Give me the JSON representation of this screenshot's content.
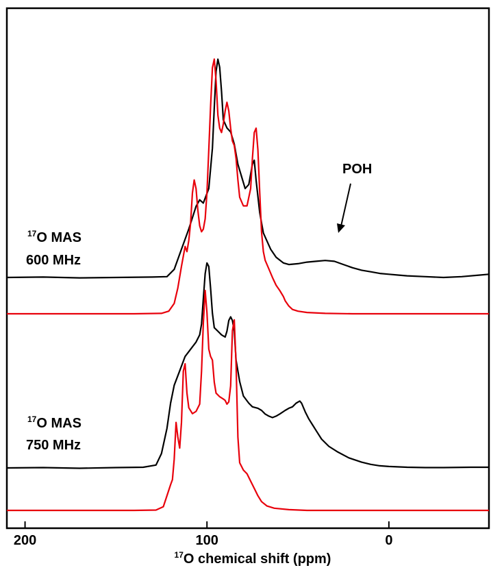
{
  "chart_data": {
    "type": "line",
    "xlabel_sup": "17",
    "xlabel_main": "O chemical shift (ppm)",
    "x_reversed": true,
    "xlim": [
      210,
      -55
    ],
    "x_ticks": [
      200,
      100,
      0
    ],
    "x_tick_labels": [
      "200",
      "100",
      "0"
    ],
    "yaxis": "none (offset stacked spectra)",
    "grid": false,
    "colors": {
      "experimental": "#000000",
      "simulated": "#e8000b"
    },
    "spectra": [
      {
        "label_sup": "17",
        "label_line1": "O MAS",
        "label_line2": "600 MHz",
        "series": [
          {
            "role": "experimental",
            "baseline": 0,
            "points": [
              [
                210,
                0
              ],
              [
                190,
                0.005
              ],
              [
                170,
                -0.005
              ],
              [
                150,
                0
              ],
              [
                130,
                0.005
              ],
              [
                122,
                0.01
              ],
              [
                118,
                0.1
              ],
              [
                114,
                0.35
              ],
              [
                110,
                0.6
              ],
              [
                106,
                0.88
              ],
              [
                104,
                0.96
              ],
              [
                102,
                0.92
              ],
              [
                99,
                1.1
              ],
              [
                97,
                1.6
              ],
              [
                96,
                2.1
              ],
              [
                95,
                2.55
              ],
              [
                94,
                2.7
              ],
              [
                93,
                2.6
              ],
              [
                92,
                2.3
              ],
              [
                91,
                1.95
              ],
              [
                89,
                1.85
              ],
              [
                87,
                1.8
              ],
              [
                85,
                1.65
              ],
              [
                83,
                1.4
              ],
              [
                81,
                1.25
              ],
              [
                79,
                1.1
              ],
              [
                77,
                1.15
              ],
              [
                75,
                1.4
              ],
              [
                74,
                1.45
              ],
              [
                73,
                1.2
              ],
              [
                71,
                0.8
              ],
              [
                69,
                0.55
              ],
              [
                67,
                0.45
              ],
              [
                65,
                0.35
              ],
              [
                62,
                0.25
              ],
              [
                58,
                0.18
              ],
              [
                55,
                0.16
              ],
              [
                50,
                0.17
              ],
              [
                45,
                0.19
              ],
              [
                40,
                0.2
              ],
              [
                35,
                0.21
              ],
              [
                30,
                0.2
              ],
              [
                25,
                0.16
              ],
              [
                20,
                0.12
              ],
              [
                15,
                0.09
              ],
              [
                10,
                0.07
              ],
              [
                5,
                0.05
              ],
              [
                0,
                0.04
              ],
              [
                -5,
                0.03
              ],
              [
                -10,
                0.02
              ],
              [
                -20,
                0.01
              ],
              [
                -30,
                0
              ],
              [
                -40,
                0.01
              ],
              [
                -50,
                0.03
              ],
              [
                -55,
                0.04
              ]
            ]
          },
          {
            "role": "simulated",
            "baseline": 0,
            "points": [
              [
                210,
                0
              ],
              [
                140,
                0
              ],
              [
                125,
                0.005
              ],
              [
                121,
                0.03
              ],
              [
                118,
                0.12
              ],
              [
                116,
                0.3
              ],
              [
                114,
                0.55
              ],
              [
                112,
                0.78
              ],
              [
                111,
                0.72
              ],
              [
                110,
                0.85
              ],
              [
                109,
                1.05
              ],
              [
                108,
                1.4
              ],
              [
                107,
                1.55
              ],
              [
                106,
                1.45
              ],
              [
                105,
                1.2
              ],
              [
                104,
                1.02
              ],
              [
                103,
                0.95
              ],
              [
                102,
                0.98
              ],
              [
                101,
                1.1
              ],
              [
                100,
                1.4
              ],
              [
                99,
                1.9
              ],
              [
                98,
                2.4
              ],
              [
                97,
                2.85
              ],
              [
                96,
                2.95
              ],
              [
                95,
                2.7
              ],
              [
                94,
                2.3
              ],
              [
                93,
                2.15
              ],
              [
                92,
                2.1
              ],
              [
                91,
                2.2
              ],
              [
                90,
                2.35
              ],
              [
                89,
                2.45
              ],
              [
                88,
                2.35
              ],
              [
                87,
                2.15
              ],
              [
                86,
                2.0
              ],
              [
                85,
                1.95
              ],
              [
                84,
                1.8
              ],
              [
                83,
                1.55
              ],
              [
                82,
                1.35
              ],
              [
                80,
                1.25
              ],
              [
                78,
                1.25
              ],
              [
                76,
                1.45
              ],
              [
                75,
                1.8
              ],
              [
                74,
                2.1
              ],
              [
                73,
                2.15
              ],
              [
                72,
                1.9
              ],
              [
                71,
                1.4
              ],
              [
                70,
                0.95
              ],
              [
                69,
                0.72
              ],
              [
                68,
                0.62
              ],
              [
                66,
                0.52
              ],
              [
                64,
                0.42
              ],
              [
                62,
                0.33
              ],
              [
                60,
                0.27
              ],
              [
                58,
                0.2
              ],
              [
                57,
                0.15
              ],
              [
                55,
                0.09
              ],
              [
                53,
                0.05
              ],
              [
                50,
                0.03
              ],
              [
                45,
                0.015
              ],
              [
                35,
                0.005
              ],
              [
                20,
                0
              ],
              [
                -55,
                0
              ]
            ]
          }
        ]
      },
      {
        "label_sup": "17",
        "label_line1": "O MAS",
        "label_line2": "750 MHz",
        "series": [
          {
            "role": "experimental",
            "baseline": 0,
            "points": [
              [
                210,
                0
              ],
              [
                190,
                0.005
              ],
              [
                170,
                -0.005
              ],
              [
                150,
                0.005
              ],
              [
                135,
                0.01
              ],
              [
                128,
                0.04
              ],
              [
                125,
                0.2
              ],
              [
                122,
                0.55
              ],
              [
                120,
                0.9
              ],
              [
                118,
                1.15
              ],
              [
                115,
                1.35
              ],
              [
                112,
                1.55
              ],
              [
                109,
                1.65
              ],
              [
                106,
                1.75
              ],
              [
                104,
                1.85
              ],
              [
                103,
                2.0
              ],
              [
                102,
                2.35
              ],
              [
                101,
                2.7
              ],
              [
                100,
                2.85
              ],
              [
                99,
                2.8
              ],
              [
                98,
                2.5
              ],
              [
                97,
                2.15
              ],
              [
                96,
                1.95
              ],
              [
                94,
                1.9
              ],
              [
                92,
                1.85
              ],
              [
                90,
                1.82
              ],
              [
                89,
                1.9
              ],
              [
                88,
                2.05
              ],
              [
                87,
                2.1
              ],
              [
                86,
                2.05
              ],
              [
                85,
                1.9
              ],
              [
                84,
                1.5
              ],
              [
                82,
                1.2
              ],
              [
                80,
                1.0
              ],
              [
                77,
                0.9
              ],
              [
                75,
                0.85
              ],
              [
                72,
                0.83
              ],
              [
                70,
                0.8
              ],
              [
                68,
                0.75
              ],
              [
                66,
                0.72
              ],
              [
                64,
                0.7
              ],
              [
                62,
                0.72
              ],
              [
                60,
                0.75
              ],
              [
                57,
                0.8
              ],
              [
                55,
                0.83
              ],
              [
                53,
                0.85
              ],
              [
                51,
                0.9
              ],
              [
                49,
                0.93
              ],
              [
                48,
                0.9
              ],
              [
                46,
                0.78
              ],
              [
                44,
                0.68
              ],
              [
                42,
                0.6
              ],
              [
                40,
                0.52
              ],
              [
                37,
                0.4
              ],
              [
                33,
                0.3
              ],
              [
                28,
                0.22
              ],
              [
                22,
                0.14
              ],
              [
                15,
                0.08
              ],
              [
                10,
                0.05
              ],
              [
                5,
                0.03
              ],
              [
                0,
                0.02
              ],
              [
                -10,
                0.01
              ],
              [
                -20,
                0.005
              ],
              [
                -30,
                0.005
              ],
              [
                -45,
                0.01
              ],
              [
                -55,
                0.01
              ]
            ]
          },
          {
            "role": "simulated",
            "baseline": 0,
            "points": [
              [
                210,
                0
              ],
              [
                140,
                0
              ],
              [
                128,
                0.005
              ],
              [
                124,
                0.05
              ],
              [
                122,
                0.2
              ],
              [
                120,
                0.35
              ],
              [
                119,
                0.42
              ],
              [
                118,
                0.7
              ],
              [
                117,
                1.2
              ],
              [
                116,
                1.0
              ],
              [
                115,
                0.85
              ],
              [
                114,
                1.2
              ],
              [
                113,
                1.9
              ],
              [
                112,
                2.0
              ],
              [
                111,
                1.6
              ],
              [
                110,
                1.4
              ],
              [
                108,
                1.32
              ],
              [
                106,
                1.35
              ],
              [
                104,
                1.45
              ],
              [
                103,
                1.9
              ],
              [
                102,
                2.55
              ],
              [
                101,
                3.0
              ],
              [
                100,
                2.7
              ],
              [
                99,
                2.2
              ],
              [
                98,
                2.1
              ],
              [
                97,
                2.05
              ],
              [
                96,
                1.75
              ],
              [
                95,
                1.6
              ],
              [
                93,
                1.55
              ],
              [
                91,
                1.52
              ],
              [
                90,
                1.5
              ],
              [
                89,
                1.45
              ],
              [
                88,
                1.48
              ],
              [
                87,
                1.7
              ],
              [
                86,
                2.45
              ],
              [
                85,
                2.6
              ],
              [
                84,
                2.0
              ],
              [
                83,
                1.0
              ],
              [
                82,
                0.65
              ],
              [
                80,
                0.55
              ],
              [
                78,
                0.5
              ],
              [
                76,
                0.4
              ],
              [
                74,
                0.3
              ],
              [
                72,
                0.2
              ],
              [
                70,
                0.12
              ],
              [
                67,
                0.06
              ],
              [
                63,
                0.03
              ],
              [
                55,
                0.01
              ],
              [
                45,
                0
              ],
              [
                -55,
                0
              ]
            ]
          }
        ]
      }
    ],
    "annotations": [
      {
        "text": "POH",
        "arrow_to_ppm": 35
      }
    ]
  }
}
